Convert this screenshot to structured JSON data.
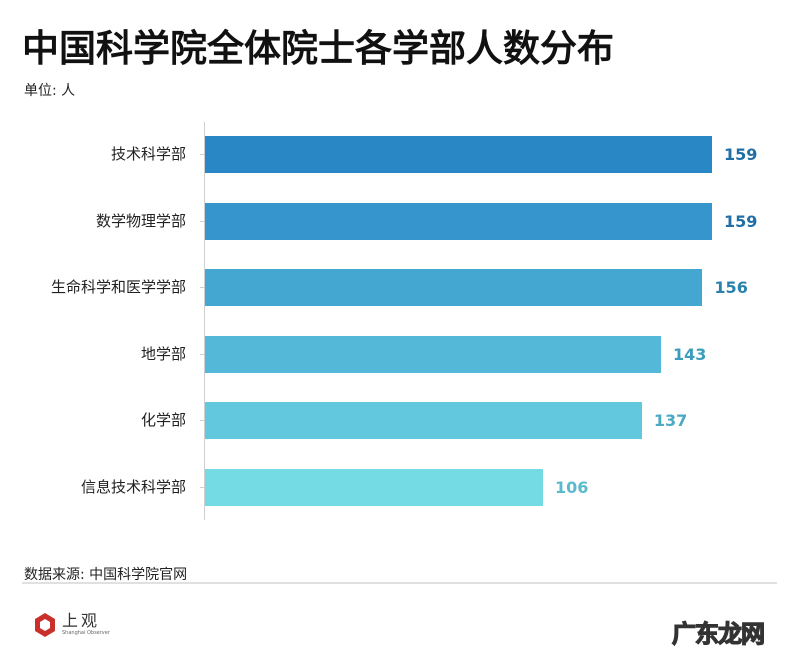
{
  "header": {
    "title": "中国科学院全体院士各学部人数分布",
    "unit": "单位: 人"
  },
  "chart_data": {
    "type": "bar",
    "orientation": "horizontal",
    "title": "中国科学院全体院士各学部人数分布",
    "xlabel": "",
    "ylabel": "",
    "unit": "人",
    "categories": [
      "技术科学部",
      "数学物理学部",
      "生命科学和医学学部",
      "地学部",
      "化学部",
      "信息技术科学部"
    ],
    "values": [
      159,
      159,
      156,
      143,
      137,
      106
    ],
    "colors": [
      "#2a87c6",
      "#3595cc",
      "#44a7d2",
      "#54b9d8",
      "#62c8dd",
      "#74dbe4"
    ],
    "label_colors": [
      "#1f6fa6",
      "#1f6fa6",
      "#2a83ad",
      "#3a9dbb",
      "#4aaac4",
      "#5bbacd"
    ],
    "xlim": [
      0,
      159
    ],
    "grid": false,
    "legend": "none",
    "data_labels": true
  },
  "footer": {
    "source": "数据来源: 中国科学院官网",
    "logo_cn": "上观",
    "logo_en": "Shanghai Observer",
    "watermark": "广东龙网"
  }
}
